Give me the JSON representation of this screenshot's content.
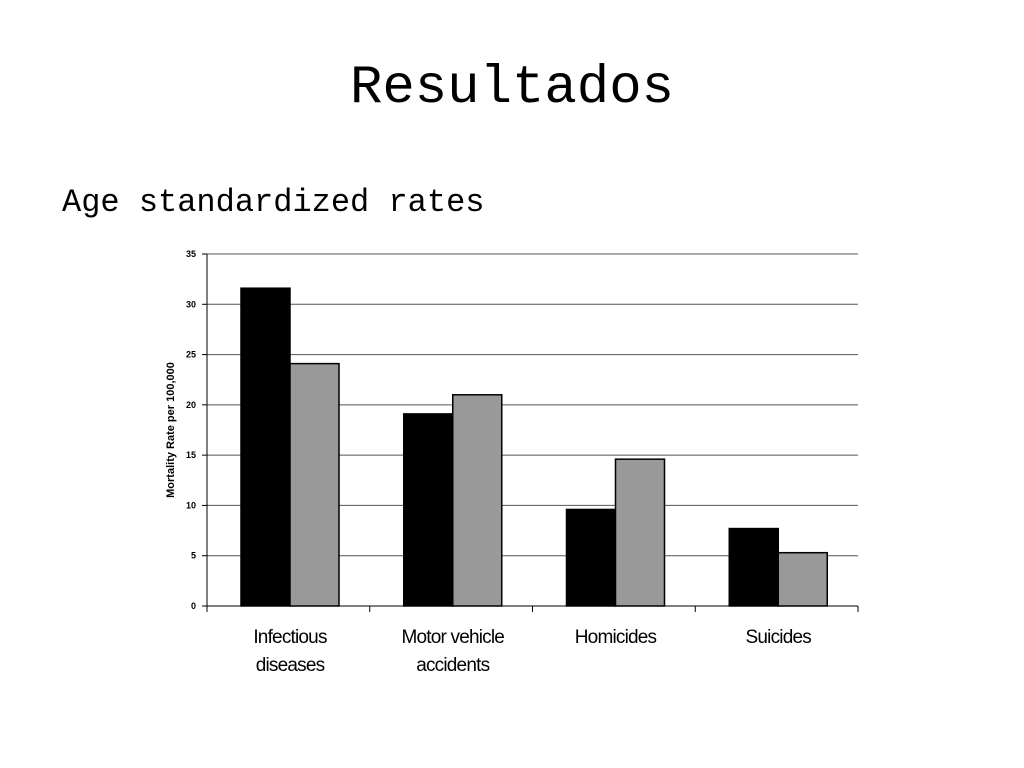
{
  "slide": {
    "title": "Resultados",
    "subtitle": "Age standardized rates"
  },
  "colors": {
    "series_1": "#000000",
    "series_2": "#999999",
    "gridline": "#555555"
  },
  "chart_data": {
    "type": "bar",
    "categories": [
      [
        "Infectious",
        "diseases"
      ],
      [
        "Motor vehicle",
        "accidents"
      ],
      [
        "Homicides"
      ],
      [
        "Suicides"
      ]
    ],
    "series": [
      {
        "values": [
          31.6,
          19.1,
          9.6,
          7.7
        ],
        "color": "#000000"
      },
      {
        "values": [
          24.1,
          21.0,
          14.6,
          5.3
        ],
        "color": "#999999"
      }
    ],
    "ylabel": "Mortality Rate per 100,000",
    "ylim": [
      0,
      35
    ],
    "yticks": [
      0,
      5,
      10,
      15,
      20,
      25,
      30,
      35
    ],
    "grid": true,
    "legend": "none"
  }
}
